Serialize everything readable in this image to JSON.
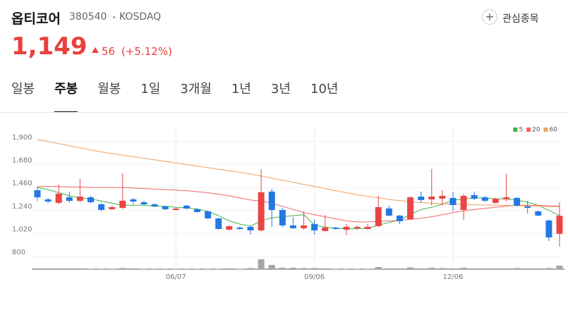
{
  "header": {
    "name": "옵티코어",
    "code": "380540",
    "market": "KOSDAQ",
    "watch_label": "관심종목",
    "price": "1,149",
    "change": "56",
    "change_pct": "(+5.12%)"
  },
  "tabs": {
    "items": [
      "일봉",
      "주봉",
      "월봉",
      "1일",
      "3개월",
      "1년",
      "3년",
      "10년"
    ],
    "selected": 1
  },
  "chart_data": {
    "type": "candlestick",
    "categories": [
      null,
      null,
      null,
      null,
      null,
      null,
      null,
      null,
      null,
      null,
      null,
      null,
      null,
      "06/07",
      null,
      null,
      null,
      null,
      null,
      null,
      null,
      null,
      null,
      null,
      null,
      null,
      "09/06",
      null,
      null,
      null,
      null,
      null,
      null,
      null,
      null,
      null,
      null,
      null,
      null,
      "12/06",
      null,
      null,
      null,
      null,
      null,
      null,
      null,
      null,
      null,
      null
    ],
    "open": [
      1394,
      1306,
      1273,
      1326,
      1292,
      1326,
      1259,
      1212,
      1225,
      1306,
      1279,
      1259,
      1239,
      1205,
      1246,
      1212,
      1192,
      1124,
      1016,
      1036,
      1043,
      1009,
      1381,
      1205,
      1057,
      1030,
      1070,
      1003,
      1036,
      1016,
      1030,
      1023,
      1050,
      1219,
      1151,
      1117,
      1333,
      1306,
      1313,
      1320,
      1205,
      1347,
      1326,
      1273,
      1306,
      1320,
      1239,
      1192,
      1104,
      976
    ],
    "high": [
      1427,
      1320,
      1448,
      1380,
      1502,
      1340,
      1273,
      1246,
      1556,
      1320,
      1293,
      1266,
      1246,
      1225,
      1252,
      1218,
      1198,
      1130,
      1057,
      1050,
      1050,
      1597,
      1408,
      1225,
      1138,
      1192,
      1111,
      1158,
      1043,
      1070,
      1057,
      1070,
      1340,
      1246,
      1158,
      1333,
      1380,
      1597,
      1394,
      1374,
      1360,
      1380,
      1340,
      1326,
      1549,
      1326,
      1293,
      1198,
      1111,
      1279
    ],
    "low": [
      1292,
      1270,
      1259,
      1273,
      1280,
      1270,
      1192,
      1205,
      1212,
      1259,
      1252,
      1232,
      1205,
      1198,
      1212,
      1178,
      1118,
      1016,
      1010,
      1016,
      969,
      996,
      1043,
      1043,
      1023,
      1016,
      969,
      996,
      1016,
      962,
      1016,
      1016,
      1043,
      1144,
      1070,
      1111,
      1273,
      1246,
      1246,
      1192,
      1111,
      1300,
      1279,
      1266,
      1286,
      1239,
      1171,
      1144,
      908,
      854
    ],
    "close": [
      1326,
      1286,
      1360,
      1292,
      1333,
      1279,
      1205,
      1232,
      1293,
      1286,
      1259,
      1239,
      1212,
      1218,
      1219,
      1185,
      1124,
      1023,
      1050,
      1023,
      1009,
      1374,
      1205,
      1057,
      1030,
      1057,
      1009,
      1036,
      1023,
      1043,
      1043,
      1043,
      1232,
      1151,
      1097,
      1326,
      1300,
      1333,
      1340,
      1252,
      1340,
      1313,
      1293,
      1313,
      1326,
      1246,
      1225,
      1151,
      942,
      1149
    ],
    "volume": [
      1,
      1,
      1,
      1,
      1,
      0.5,
      0.5,
      0.5,
      1.5,
      1,
      0.5,
      0.5,
      0.5,
      0.5,
      0.5,
      0.5,
      0.5,
      0.5,
      1,
      0.5,
      1.5,
      14,
      6,
      2,
      2,
      1.5,
      1.5,
      1,
      0.5,
      0.5,
      0.5,
      0.5,
      3,
      1,
      1,
      2.5,
      1,
      2,
      1.5,
      1,
      2,
      1,
      1,
      1,
      1,
      1.5,
      1,
      1,
      1.5,
      5
    ],
    "volume_color": "#a6a6a6",
    "up_color": "#ea4545",
    "down_color": "#2378e6",
    "series": [
      {
        "name": "5",
        "color": "#3cb34a",
        "values": [
          1420,
          1400,
          1370,
          1340,
          1320,
          1310,
          1290,
          1270,
          1250,
          1250,
          1250,
          1240,
          1240,
          1230,
          1225,
          1215,
          1190,
          1150,
          1100,
          1070,
          1050,
          1100,
          1130,
          1140,
          1150,
          1160,
          1060,
          1040,
          1030,
          1025,
          1025,
          1030,
          1060,
          1085,
          1110,
          1160,
          1210,
          1230,
          1260,
          1300,
          1310,
          1320,
          1320,
          1310,
          1310,
          1300,
          1280,
          1250,
          1200,
          1150
        ]
      },
      {
        "name": "20",
        "color": "#f06464",
        "values": [
          1430,
          1430,
          1430,
          1425,
          1425,
          1420,
          1420,
          1420,
          1420,
          1415,
          1410,
          1405,
          1400,
          1395,
          1390,
          1380,
          1370,
          1355,
          1340,
          1320,
          1300,
          1290,
          1270,
          1240,
          1210,
          1180,
          1160,
          1140,
          1120,
          1100,
          1090,
          1090,
          1095,
          1100,
          1105,
          1115,
          1125,
          1140,
          1160,
          1180,
          1195,
          1210,
          1220,
          1230,
          1240,
          1250,
          1250,
          1250,
          1245,
          1240
        ]
      },
      {
        "name": "60",
        "color": "#f0a060",
        "values": [
          1880,
          1860,
          1840,
          1820,
          1800,
          1780,
          1760,
          1745,
          1730,
          1715,
          1700,
          1685,
          1670,
          1655,
          1640,
          1625,
          1610,
          1595,
          1580,
          1565,
          1550,
          1530,
          1510,
          1490,
          1470,
          1450,
          1430,
          1410,
          1390,
          1370,
          1350,
          1335,
          1320,
          1305,
          1295,
          1285,
          1275,
          1270,
          1265,
          1260,
          1258,
          1255,
          1252,
          1250,
          1248,
          1246,
          1244,
          1242,
          1238,
          1235
        ]
      }
    ],
    "ylim": [
      800,
      1900
    ],
    "yticks": [
      {
        "value": 1900,
        "label": "1,900"
      },
      {
        "value": 1680,
        "label": "1,680"
      },
      {
        "value": 1460,
        "label": "1,460"
      },
      {
        "value": 1240,
        "label": "1,240"
      },
      {
        "value": 1020,
        "label": "1,020"
      },
      800
    ],
    "grid": true,
    "legend": "top-right"
  }
}
